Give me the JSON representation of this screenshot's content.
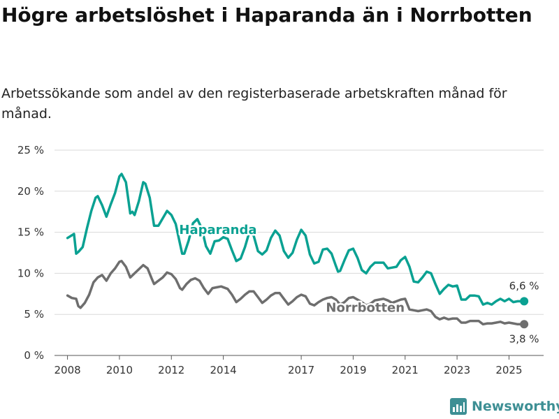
{
  "header": {
    "title": "Högre arbetslöshet i Haparanda än i Norrbotten",
    "subtitle": "Arbetssökande som andel av den registerbaserade arbetskraften månad för månad."
  },
  "brand": {
    "name": "Newsworthy",
    "icon": "bar-chart-logo-icon",
    "color": "#3d8f94"
  },
  "chart_data": {
    "type": "line",
    "title": "Högre arbetslöshet i Haparanda än i Norrbotten",
    "subtitle": "Arbetssökande som andel av den registerbaserade arbetskraften månad för månad.",
    "xlabel": "",
    "ylabel": "",
    "ylim": [
      0,
      25
    ],
    "xlim": [
      "2007-07",
      "2026-05"
    ],
    "y_ticks": [
      0,
      5,
      10,
      15,
      20,
      25
    ],
    "y_tick_labels": [
      "0 %",
      "5 %",
      "10 %",
      "15 %",
      "20 %",
      "25 %"
    ],
    "x_ticks": [
      "2008",
      "2010",
      "2012",
      "2014",
      "2017",
      "2019",
      "2021",
      "2023",
      "2025"
    ],
    "grid": "horizontal",
    "legend": "inline labels",
    "series": [
      {
        "name": "Haparanda",
        "color": "#0aa192",
        "end_label": "6,6 %",
        "points": [
          [
            "2008-01",
            14.3
          ],
          [
            "2008-04",
            14.8
          ],
          [
            "2008-05",
            12.4
          ],
          [
            "2008-06",
            12.6
          ],
          [
            "2008-08",
            13.2
          ],
          [
            "2008-10",
            15.5
          ],
          [
            "2008-12",
            17.6
          ],
          [
            "2009-02",
            19.2
          ],
          [
            "2009-03",
            19.4
          ],
          [
            "2009-05",
            18.3
          ],
          [
            "2009-07",
            16.9
          ],
          [
            "2009-09",
            18.4
          ],
          [
            "2009-11",
            19.8
          ],
          [
            "2010-01",
            21.8
          ],
          [
            "2010-02",
            22.1
          ],
          [
            "2010-04",
            21.1
          ],
          [
            "2010-06",
            17.3
          ],
          [
            "2010-07",
            17.5
          ],
          [
            "2010-08",
            17.1
          ],
          [
            "2010-10",
            18.8
          ],
          [
            "2010-12",
            21.1
          ],
          [
            "2011-01",
            20.9
          ],
          [
            "2011-03",
            19.2
          ],
          [
            "2011-05",
            15.8
          ],
          [
            "2011-07",
            15.8
          ],
          [
            "2011-09",
            16.7
          ],
          [
            "2011-11",
            17.6
          ],
          [
            "2012-01",
            17.1
          ],
          [
            "2012-03",
            16.0
          ],
          [
            "2012-05",
            13.6
          ],
          [
            "2012-06",
            12.4
          ],
          [
            "2012-07",
            12.4
          ],
          [
            "2012-09",
            14.0
          ],
          [
            "2012-11",
            16.1
          ],
          [
            "2013-01",
            16.6
          ],
          [
            "2013-03",
            15.5
          ],
          [
            "2013-05",
            13.3
          ],
          [
            "2013-07",
            12.4
          ],
          [
            "2013-09",
            13.9
          ],
          [
            "2013-11",
            14.0
          ],
          [
            "2014-01",
            14.4
          ],
          [
            "2014-03",
            14.2
          ],
          [
            "2014-05",
            12.8
          ],
          [
            "2014-07",
            11.5
          ],
          [
            "2014-09",
            11.8
          ],
          [
            "2014-11",
            13.2
          ],
          [
            "2015-01",
            15.0
          ],
          [
            "2015-03",
            14.6
          ],
          [
            "2015-05",
            12.7
          ],
          [
            "2015-07",
            12.3
          ],
          [
            "2015-09",
            12.8
          ],
          [
            "2015-11",
            14.3
          ],
          [
            "2016-01",
            15.2
          ],
          [
            "2016-03",
            14.6
          ],
          [
            "2016-05",
            12.7
          ],
          [
            "2016-07",
            11.9
          ],
          [
            "2016-09",
            12.5
          ],
          [
            "2016-11",
            14.1
          ],
          [
            "2017-01",
            15.3
          ],
          [
            "2017-03",
            14.6
          ],
          [
            "2017-05",
            12.3
          ],
          [
            "2017-07",
            11.2
          ],
          [
            "2017-09",
            11.4
          ],
          [
            "2017-11",
            12.9
          ],
          [
            "2018-01",
            13.0
          ],
          [
            "2018-03",
            12.4
          ],
          [
            "2018-05",
            10.9
          ],
          [
            "2018-06",
            10.2
          ],
          [
            "2018-07",
            10.3
          ],
          [
            "2018-09",
            11.6
          ],
          [
            "2018-11",
            12.8
          ],
          [
            "2019-01",
            13.0
          ],
          [
            "2019-03",
            11.9
          ],
          [
            "2019-05",
            10.4
          ],
          [
            "2019-07",
            10.0
          ],
          [
            "2019-09",
            10.8
          ],
          [
            "2019-11",
            11.3
          ],
          [
            "2020-01",
            11.3
          ],
          [
            "2020-03",
            11.3
          ],
          [
            "2020-05",
            10.6
          ],
          [
            "2020-07",
            10.7
          ],
          [
            "2020-09",
            10.8
          ],
          [
            "2020-11",
            11.6
          ],
          [
            "2021-01",
            12.0
          ],
          [
            "2021-03",
            10.8
          ],
          [
            "2021-05",
            9.0
          ],
          [
            "2021-07",
            8.9
          ],
          [
            "2021-09",
            9.5
          ],
          [
            "2021-11",
            10.2
          ],
          [
            "2022-01",
            10.0
          ],
          [
            "2022-03",
            8.7
          ],
          [
            "2022-05",
            7.5
          ],
          [
            "2022-07",
            8.1
          ],
          [
            "2022-09",
            8.6
          ],
          [
            "2022-11",
            8.4
          ],
          [
            "2023-01",
            8.5
          ],
          [
            "2023-03",
            6.8
          ],
          [
            "2023-05",
            6.8
          ],
          [
            "2023-07",
            7.3
          ],
          [
            "2023-09",
            7.3
          ],
          [
            "2023-11",
            7.2
          ],
          [
            "2024-01",
            6.2
          ],
          [
            "2024-03",
            6.4
          ],
          [
            "2024-05",
            6.2
          ],
          [
            "2024-07",
            6.6
          ],
          [
            "2024-09",
            6.9
          ],
          [
            "2024-11",
            6.6
          ],
          [
            "2025-01",
            6.9
          ],
          [
            "2025-03",
            6.5
          ],
          [
            "2025-05",
            6.6
          ],
          [
            "2025-07",
            6.6
          ],
          [
            "2025-08",
            6.6
          ]
        ]
      },
      {
        "name": "Norrbotten",
        "color": "#6e6e6e",
        "end_label": "3,8 %",
        "points": [
          [
            "2008-01",
            7.3
          ],
          [
            "2008-03",
            7.0
          ],
          [
            "2008-05",
            6.9
          ],
          [
            "2008-06",
            6.0
          ],
          [
            "2008-07",
            5.8
          ],
          [
            "2008-09",
            6.4
          ],
          [
            "2008-11",
            7.4
          ],
          [
            "2009-01",
            8.9
          ],
          [
            "2009-03",
            9.5
          ],
          [
            "2009-05",
            9.8
          ],
          [
            "2009-07",
            9.1
          ],
          [
            "2009-09",
            10.0
          ],
          [
            "2009-11",
            10.6
          ],
          [
            "2010-01",
            11.4
          ],
          [
            "2010-02",
            11.5
          ],
          [
            "2010-04",
            10.8
          ],
          [
            "2010-06",
            9.5
          ],
          [
            "2010-08",
            10.0
          ],
          [
            "2010-10",
            10.5
          ],
          [
            "2010-12",
            11.0
          ],
          [
            "2011-02",
            10.6
          ],
          [
            "2011-04",
            9.3
          ],
          [
            "2011-05",
            8.7
          ],
          [
            "2011-07",
            9.1
          ],
          [
            "2011-09",
            9.5
          ],
          [
            "2011-11",
            10.1
          ],
          [
            "2012-01",
            9.9
          ],
          [
            "2012-03",
            9.3
          ],
          [
            "2012-05",
            8.2
          ],
          [
            "2012-06",
            8.0
          ],
          [
            "2012-08",
            8.7
          ],
          [
            "2012-10",
            9.2
          ],
          [
            "2012-12",
            9.4
          ],
          [
            "2013-02",
            9.1
          ],
          [
            "2013-04",
            8.2
          ],
          [
            "2013-06",
            7.5
          ],
          [
            "2013-08",
            8.2
          ],
          [
            "2013-10",
            8.3
          ],
          [
            "2013-12",
            8.4
          ],
          [
            "2014-03",
            8.1
          ],
          [
            "2014-05",
            7.4
          ],
          [
            "2014-07",
            6.5
          ],
          [
            "2014-09",
            6.9
          ],
          [
            "2014-11",
            7.4
          ],
          [
            "2015-01",
            7.8
          ],
          [
            "2015-03",
            7.8
          ],
          [
            "2015-05",
            7.1
          ],
          [
            "2015-07",
            6.4
          ],
          [
            "2015-09",
            6.8
          ],
          [
            "2015-11",
            7.3
          ],
          [
            "2016-01",
            7.6
          ],
          [
            "2016-03",
            7.6
          ],
          [
            "2016-05",
            6.9
          ],
          [
            "2016-07",
            6.2
          ],
          [
            "2016-09",
            6.6
          ],
          [
            "2016-11",
            7.1
          ],
          [
            "2017-01",
            7.4
          ],
          [
            "2017-03",
            7.2
          ],
          [
            "2017-05",
            6.3
          ],
          [
            "2017-07",
            6.1
          ],
          [
            "2017-09",
            6.5
          ],
          [
            "2017-11",
            6.8
          ],
          [
            "2018-01",
            7.0
          ],
          [
            "2018-03",
            7.1
          ],
          [
            "2018-05",
            6.8
          ],
          [
            "2018-07",
            6.2
          ],
          [
            "2018-09",
            6.5
          ],
          [
            "2018-11",
            7.0
          ],
          [
            "2019-01",
            7.1
          ],
          [
            "2019-03",
            6.8
          ],
          [
            "2019-05",
            6.5
          ],
          [
            "2019-07",
            6.1
          ],
          [
            "2019-09",
            6.3
          ],
          [
            "2019-11",
            6.7
          ],
          [
            "2020-01",
            6.8
          ],
          [
            "2020-03",
            6.9
          ],
          [
            "2020-05",
            6.7
          ],
          [
            "2020-07",
            6.4
          ],
          [
            "2020-09",
            6.6
          ],
          [
            "2020-11",
            6.8
          ],
          [
            "2021-01",
            6.9
          ],
          [
            "2021-03",
            5.6
          ],
          [
            "2021-05",
            5.5
          ],
          [
            "2021-07",
            5.4
          ],
          [
            "2021-09",
            5.5
          ],
          [
            "2021-11",
            5.6
          ],
          [
            "2022-01",
            5.4
          ],
          [
            "2022-03",
            4.7
          ],
          [
            "2022-05",
            4.4
          ],
          [
            "2022-07",
            4.6
          ],
          [
            "2022-09",
            4.4
          ],
          [
            "2022-11",
            4.5
          ],
          [
            "2023-01",
            4.5
          ],
          [
            "2023-03",
            4.0
          ],
          [
            "2023-05",
            4.0
          ],
          [
            "2023-07",
            4.2
          ],
          [
            "2023-09",
            4.2
          ],
          [
            "2023-11",
            4.2
          ],
          [
            "2024-01",
            3.8
          ],
          [
            "2024-03",
            3.9
          ],
          [
            "2024-05",
            3.9
          ],
          [
            "2024-07",
            4.0
          ],
          [
            "2024-09",
            4.1
          ],
          [
            "2024-11",
            3.9
          ],
          [
            "2025-01",
            4.0
          ],
          [
            "2025-03",
            3.9
          ],
          [
            "2025-05",
            3.8
          ],
          [
            "2025-07",
            3.8
          ],
          [
            "2025-08",
            3.8
          ]
        ]
      }
    ]
  }
}
